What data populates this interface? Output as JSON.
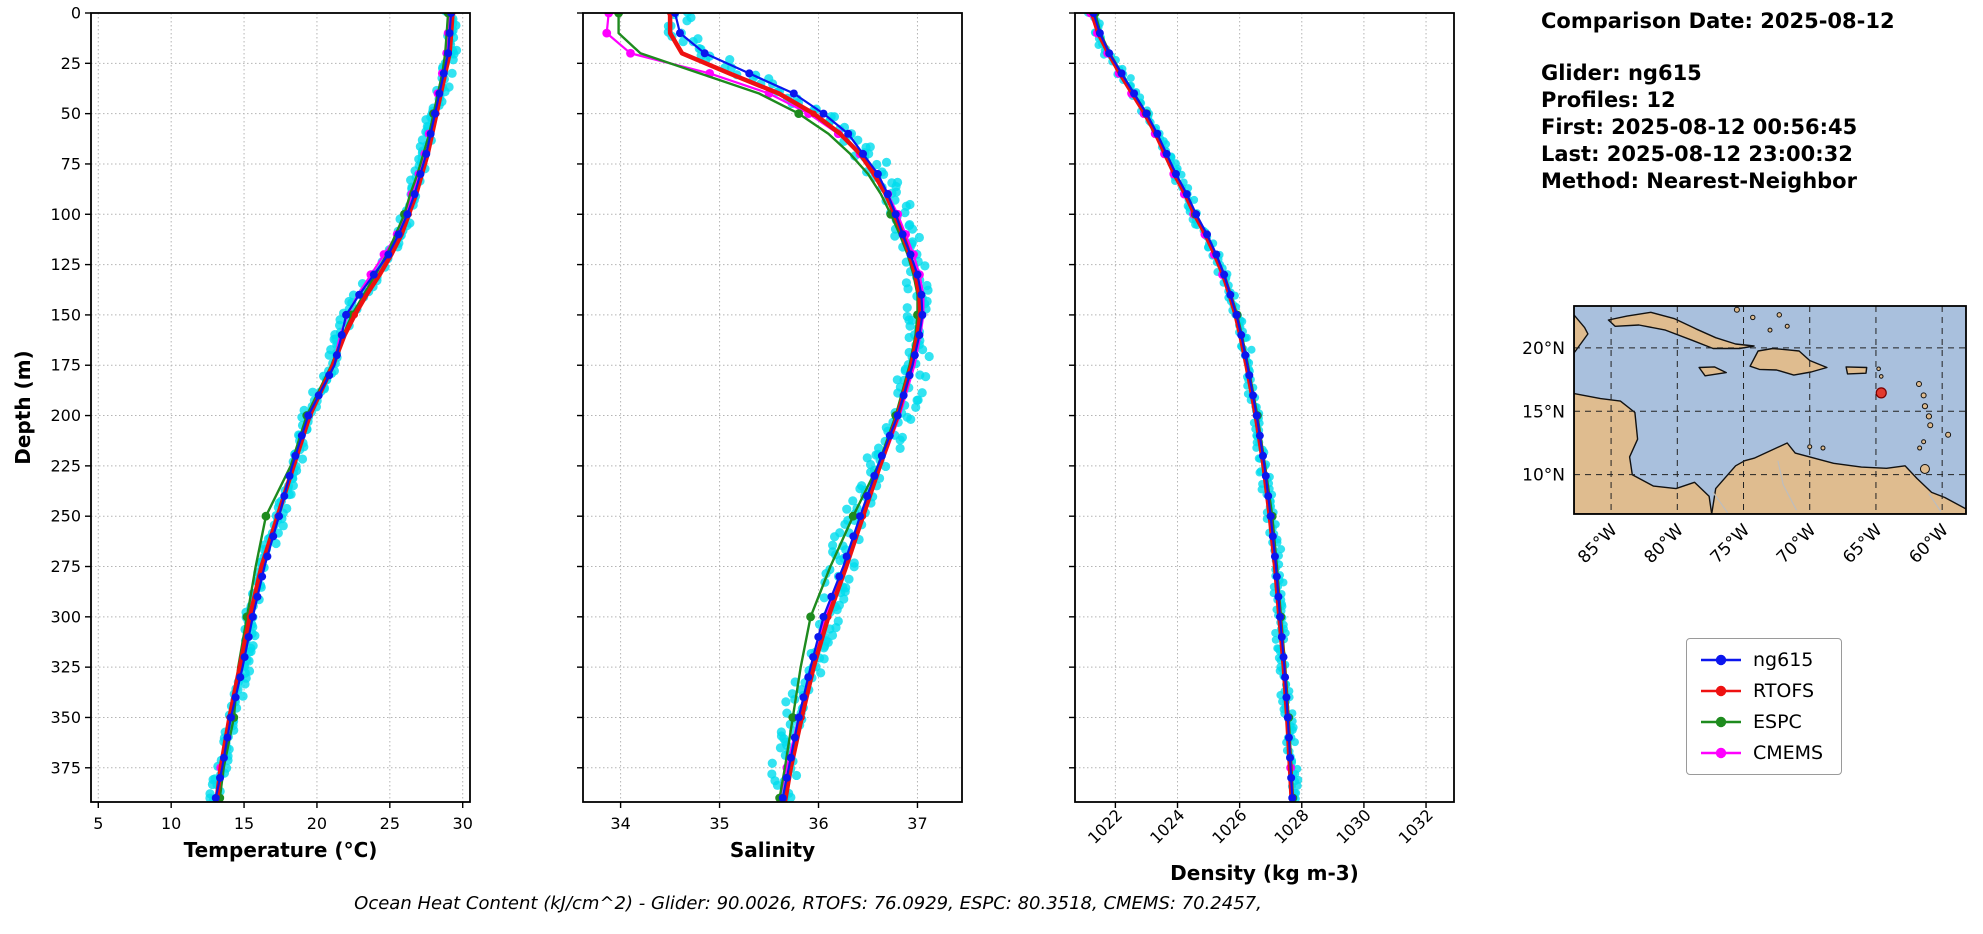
{
  "info_panel": {
    "comparison_date": "Comparison Date: 2025-08-12",
    "glider": "Glider: ng615",
    "profiles": "Profiles: 12",
    "first": "First: 2025-08-12 00:56:45",
    "last": "Last: 2025-08-12 23:00:32",
    "method": "Method: Nearest-Neighbor"
  },
  "footer": {
    "note": "Ocean Heat Content (kJ/cm^2) - Glider: 90.0026,  RTOFS: 76.0929,  ESPC: 80.3518,  CMEMS: 70.2457,"
  },
  "legend": {
    "items": [
      {
        "label": "ng615",
        "color": "#0b16ee"
      },
      {
        "label": "RTOFS",
        "color": "#ee1111"
      },
      {
        "label": "ESPC",
        "color": "#1e8b1e"
      },
      {
        "label": "CMEMS",
        "color": "#ff00ff"
      }
    ]
  },
  "colors": {
    "glider_raw": "#00dcee",
    "grid": "#b4b4b4",
    "spine": "#000000",
    "map_ocean": "#a9c0dd",
    "map_land": "#dfbc8f",
    "map_coast": "#111111",
    "map_border_lines": "#bdbdbd",
    "glider_marker": "#e23a2e"
  },
  "map": {
    "lat_ticks": [
      {
        "value": 20,
        "label": "20°N"
      },
      {
        "value": 15,
        "label": "15°N"
      },
      {
        "value": 10,
        "label": "10°N"
      }
    ],
    "lon_ticks": [
      {
        "value": -85,
        "label": "85°W"
      },
      {
        "value": -80,
        "label": "80°W"
      },
      {
        "value": -75,
        "label": "75°W"
      },
      {
        "value": -70,
        "label": "70°W"
      },
      {
        "value": -65,
        "label": "65°W"
      },
      {
        "value": -60,
        "label": "60°W"
      }
    ],
    "glider_location": {
      "lon": -64.6,
      "lat": 16.45
    }
  },
  "chart_data": [
    {
      "type": "line",
      "title": "",
      "xlabel": "Temperature (°C)",
      "ylabel": "Depth (m)",
      "xlim": [
        4.5,
        30.5
      ],
      "xticks": [
        5,
        10,
        15,
        20,
        25,
        30
      ],
      "ylim": [
        0,
        392
      ],
      "yticks": [
        0,
        25,
        50,
        75,
        100,
        125,
        150,
        175,
        200,
        225,
        250,
        275,
        300,
        325,
        350,
        375
      ],
      "grid": true,
      "depths": [
        0,
        10,
        20,
        30,
        40,
        50,
        60,
        70,
        80,
        90,
        100,
        110,
        120,
        130,
        140,
        150,
        160,
        175,
        200,
        225,
        250,
        275,
        300,
        325,
        350,
        375,
        392
      ],
      "series": [
        {
          "name": "glider-raw",
          "kind": "scatter",
          "color": "#00dcee",
          "jitter": 0.38,
          "size": 4.6,
          "base": "ng615"
        },
        {
          "name": "CMEMS",
          "kind": "line",
          "color": "#ff00ff",
          "lw": 2.2,
          "marker_size": 4.4,
          "marker_depths": [
            0,
            10,
            20,
            30,
            40,
            50,
            60,
            70,
            80,
            90,
            100,
            110,
            120,
            130,
            375
          ],
          "values": [
            29.1,
            29.0,
            28.9,
            28.6,
            28.3,
            28.0,
            27.7,
            27.4,
            27.0,
            26.5,
            26.1,
            25.5,
            24.6,
            23.7,
            22.8,
            22.1,
            21.6,
            21.1,
            19.4,
            18.3,
            17.3,
            16.3,
            15.5,
            14.8,
            14.1,
            13.4,
            13.0
          ]
        },
        {
          "name": "ESPC",
          "kind": "line",
          "color": "#1e8b1e",
          "lw": 2.4,
          "marker_size": 4.4,
          "marker_depths": [
            0,
            50,
            100,
            150,
            200,
            250,
            300,
            350,
            390
          ],
          "values": [
            29.0,
            28.9,
            28.8,
            28.6,
            28.3,
            28.0,
            27.7,
            27.3,
            26.9,
            26.4,
            26.0,
            25.4,
            24.8,
            24.0,
            23.2,
            22.4,
            21.8,
            21.0,
            19.3,
            18.2,
            16.5,
            15.8,
            15.2,
            14.6,
            14.3,
            13.6,
            13.3
          ]
        },
        {
          "name": "RTOFS",
          "kind": "line",
          "color": "#ee1111",
          "lw": 4.5,
          "marker_size": 3.2,
          "marker_depths": [
            0,
            50,
            100,
            150,
            200,
            250,
            300,
            350
          ],
          "values": [
            29.3,
            29.2,
            29.1,
            28.8,
            28.5,
            28.2,
            27.9,
            27.6,
            27.2,
            26.8,
            26.3,
            25.8,
            25.1,
            24.3,
            23.4,
            22.6,
            21.9,
            21.1,
            19.5,
            18.4,
            17.3,
            16.2,
            15.4,
            14.7,
            14.0,
            13.4,
            13.1
          ]
        },
        {
          "name": "ng615",
          "kind": "line",
          "color": "#0b16ee",
          "lw": 2.2,
          "marker_size": 4.0,
          "marker_step": 10,
          "values": [
            29.2,
            29.1,
            29.0,
            28.7,
            28.4,
            28.1,
            27.8,
            27.5,
            27.1,
            26.7,
            26.2,
            25.6,
            24.9,
            23.9,
            22.9,
            22.0,
            21.7,
            21.2,
            19.4,
            18.3,
            17.4,
            16.4,
            15.6,
            14.9,
            14.1,
            13.5,
            13.0
          ]
        }
      ]
    },
    {
      "type": "line",
      "title": "",
      "xlabel": "Salinity",
      "ylabel": "",
      "xlim": [
        33.62,
        37.45
      ],
      "xticks": [
        34,
        35,
        36,
        37
      ],
      "ylim": [
        0,
        392
      ],
      "yticks": [
        0,
        25,
        50,
        75,
        100,
        125,
        150,
        175,
        200,
        225,
        250,
        275,
        300,
        325,
        350,
        375
      ],
      "grid": true,
      "depths": [
        0,
        10,
        20,
        30,
        40,
        50,
        60,
        70,
        80,
        90,
        100,
        110,
        120,
        130,
        140,
        150,
        160,
        175,
        200,
        225,
        250,
        275,
        300,
        325,
        350,
        375,
        392
      ],
      "series": [
        {
          "name": "glider-raw",
          "kind": "scatter",
          "color": "#00dcee",
          "jitter": 0.12,
          "size": 4.6,
          "base": "ng615"
        },
        {
          "name": "CMEMS",
          "kind": "line",
          "color": "#ff00ff",
          "lw": 2.2,
          "marker_size": 4.4,
          "marker_depths": [
            0,
            10,
            20,
            30,
            40,
            50,
            60,
            70,
            80,
            90,
            100,
            110,
            120,
            130,
            375
          ],
          "values": [
            33.88,
            33.86,
            34.1,
            34.9,
            35.5,
            35.9,
            36.2,
            36.42,
            36.58,
            36.7,
            36.8,
            36.88,
            36.96,
            37.02,
            37.06,
            37.06,
            37.03,
            36.97,
            36.82,
            36.63,
            36.45,
            36.27,
            36.07,
            35.93,
            35.8,
            35.68,
            35.6
          ]
        },
        {
          "name": "ESPC",
          "kind": "line",
          "color": "#1e8b1e",
          "lw": 2.4,
          "marker_size": 4.4,
          "marker_depths": [
            0,
            50,
            100,
            150,
            200,
            250,
            300,
            350,
            390
          ],
          "values": [
            33.98,
            33.98,
            34.2,
            34.8,
            35.4,
            35.8,
            36.1,
            36.32,
            36.5,
            36.63,
            36.73,
            36.82,
            36.9,
            36.96,
            37.0,
            37.0,
            36.98,
            36.92,
            36.78,
            36.6,
            36.35,
            36.12,
            35.92,
            35.82,
            35.74,
            35.66,
            35.6
          ]
        },
        {
          "name": "RTOFS",
          "kind": "line",
          "color": "#ee1111",
          "lw": 4.5,
          "marker_size": 3.2,
          "marker_depths": [
            0,
            50,
            100,
            150,
            200,
            250,
            300,
            350
          ],
          "values": [
            34.5,
            34.5,
            34.62,
            35.1,
            35.6,
            35.95,
            36.22,
            36.42,
            36.56,
            36.68,
            36.77,
            36.85,
            36.92,
            36.98,
            37.02,
            37.03,
            37.0,
            36.94,
            36.8,
            36.62,
            36.45,
            36.28,
            36.1,
            35.95,
            35.83,
            35.72,
            35.66
          ]
        },
        {
          "name": "ng615",
          "kind": "line",
          "color": "#0b16ee",
          "lw": 2.2,
          "marker_size": 4.0,
          "marker_step": 10,
          "values": [
            34.55,
            34.6,
            34.85,
            35.3,
            35.75,
            36.05,
            36.3,
            36.45,
            36.6,
            36.7,
            36.78,
            36.85,
            36.93,
            37.0,
            37.04,
            37.05,
            37.02,
            36.95,
            36.8,
            36.6,
            36.42,
            36.25,
            36.05,
            35.92,
            35.8,
            35.7,
            35.63
          ]
        }
      ]
    },
    {
      "type": "line",
      "title": "",
      "xlabel": "Density (kg m-3)",
      "ylabel": "",
      "xlim": [
        1020.7,
        1032.9
      ],
      "xticks": [
        1022,
        1024,
        1026,
        1028,
        1030,
        1032
      ],
      "rotate_xticks": true,
      "ylim": [
        0,
        392
      ],
      "yticks": [
        0,
        25,
        50,
        75,
        100,
        125,
        150,
        175,
        200,
        225,
        250,
        275,
        300,
        325,
        350,
        375
      ],
      "grid": true,
      "depths": [
        0,
        10,
        20,
        30,
        40,
        50,
        60,
        70,
        80,
        90,
        100,
        110,
        120,
        130,
        140,
        150,
        160,
        175,
        200,
        225,
        250,
        275,
        300,
        325,
        350,
        375,
        392
      ],
      "series": [
        {
          "name": "glider-raw",
          "kind": "scatter",
          "color": "#00dcee",
          "jitter": 0.15,
          "size": 4.0,
          "base": "ng615"
        },
        {
          "name": "CMEMS",
          "kind": "line",
          "color": "#ff00ff",
          "lw": 2.2,
          "marker_size": 4.4,
          "marker_depths": [
            0,
            10,
            20,
            30,
            40,
            50,
            60,
            70,
            80,
            90,
            100,
            110,
            120,
            130,
            375
          ],
          "values": [
            1021.2,
            1021.42,
            1021.75,
            1022.12,
            1022.52,
            1022.92,
            1023.28,
            1023.58,
            1023.88,
            1024.22,
            1024.52,
            1024.88,
            1025.18,
            1025.45,
            1025.67,
            1025.88,
            1026.03,
            1026.23,
            1026.53,
            1026.78,
            1027.0,
            1027.16,
            1027.3,
            1027.44,
            1027.55,
            1027.64,
            1027.7
          ]
        },
        {
          "name": "ESPC",
          "kind": "line",
          "color": "#1e8b1e",
          "lw": 2.4,
          "marker_size": 4.4,
          "marker_depths": [
            0,
            50,
            100,
            150,
            200,
            250,
            300,
            350,
            390
          ],
          "values": [
            1021.35,
            1021.52,
            1021.82,
            1022.2,
            1022.6,
            1023.0,
            1023.33,
            1023.63,
            1023.93,
            1024.27,
            1024.57,
            1024.92,
            1025.22,
            1025.5,
            1025.72,
            1025.92,
            1026.07,
            1026.27,
            1026.57,
            1026.82,
            1027.05,
            1027.2,
            1027.33,
            1027.47,
            1027.58,
            1027.67,
            1027.72
          ]
        },
        {
          "name": "RTOFS",
          "kind": "line",
          "color": "#ee1111",
          "lw": 4.5,
          "marker_size": 3.2,
          "marker_depths": [
            0,
            50,
            100,
            150,
            200,
            250,
            300,
            350
          ],
          "values": [
            1021.25,
            1021.45,
            1021.78,
            1022.15,
            1022.55,
            1022.95,
            1023.3,
            1023.6,
            1023.9,
            1024.25,
            1024.55,
            1024.9,
            1025.2,
            1025.47,
            1025.68,
            1025.87,
            1026.02,
            1026.22,
            1026.52,
            1026.77,
            1026.97,
            1027.14,
            1027.28,
            1027.42,
            1027.53,
            1027.62,
            1027.68
          ]
        },
        {
          "name": "ng615",
          "kind": "line",
          "color": "#0b16ee",
          "lw": 2.2,
          "marker_size": 4.0,
          "marker_step": 10,
          "values": [
            1021.3,
            1021.5,
            1021.8,
            1022.2,
            1022.6,
            1023.0,
            1023.35,
            1023.65,
            1023.95,
            1024.3,
            1024.6,
            1024.95,
            1025.25,
            1025.5,
            1025.7,
            1025.9,
            1026.05,
            1026.25,
            1026.55,
            1026.8,
            1027.0,
            1027.17,
            1027.3,
            1027.44,
            1027.55,
            1027.64,
            1027.7
          ]
        }
      ]
    }
  ]
}
